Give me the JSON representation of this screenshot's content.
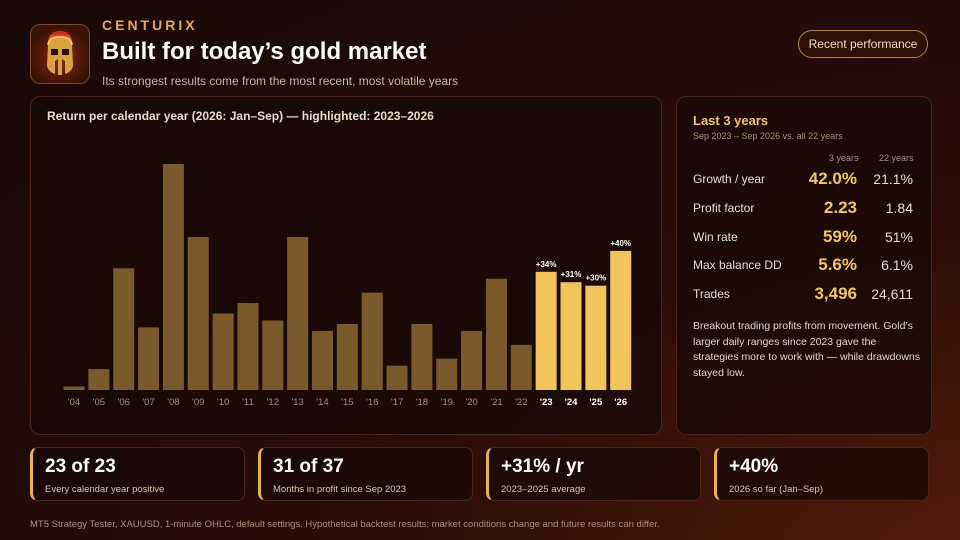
{
  "header": {
    "brand": "CENTURIX",
    "title": "Built for today’s gold market",
    "subtitle": "Its strongest results come from the most recent, most volatile years",
    "pill_label": "Recent performance"
  },
  "logo": {
    "icon": "spartan-helmet-icon"
  },
  "colors": {
    "bar_normal": "#7a5a2c",
    "bar_highlight": "#f2c55c",
    "accent": "#e8a85a"
  },
  "chart_data": {
    "type": "bar",
    "title": "Return per calendar year (2026: Jan–Sep) — highlighted: 2023–2026",
    "categories": [
      "'04",
      "'05",
      "'06",
      "'07",
      "'08",
      "'09",
      "'10",
      "'11",
      "'12",
      "'13",
      "'14",
      "'15",
      "'16",
      "'17",
      "'18",
      "'19",
      "'20",
      "'21",
      "'22",
      "'23",
      "'24",
      "'25",
      "'26"
    ],
    "values": [
      1,
      6,
      35,
      18,
      65,
      44,
      22,
      25,
      20,
      44,
      17,
      19,
      28,
      7,
      19,
      9,
      17,
      32,
      13,
      34,
      31,
      30,
      40
    ],
    "highlighted": [
      "'23",
      "'24",
      "'25",
      "'26"
    ],
    "data_labels": {
      "'23": "+34%",
      "'24": "+31%",
      "'25": "+30%",
      "'26": "+40%"
    },
    "ylim": [
      0,
      65
    ],
    "grid": false
  },
  "stats": {
    "title": "Last 3 years",
    "subtitle": "Sep 2023 – Sep 2026 vs. all 22 years",
    "col_3y": "3 years",
    "col_22y": "22 years",
    "rows": [
      {
        "label": "Growth / year",
        "v3": "42.0%",
        "v22": "21.1%"
      },
      {
        "label": "Profit factor",
        "v3": "2.23",
        "v22": "1.84"
      },
      {
        "label": "Win rate",
        "v3": "59%",
        "v22": "51%"
      },
      {
        "label": "Max balance DD",
        "v3": "5.6%",
        "v22": "6.1%"
      },
      {
        "label": "Trades",
        "v3": "3,496",
        "v22": "24,611"
      }
    ],
    "note": "Breakout trading profits from movement. Gold’s larger daily ranges since 2023 gave the strategies more to work with — while drawdowns stayed low."
  },
  "cards": [
    {
      "value": "23 of 23",
      "label": "Every calendar year positive"
    },
    {
      "value": "31 of 37",
      "label": "Months in profit since Sep 2023"
    },
    {
      "value": "+31% / yr",
      "label": "2023–2025 average"
    },
    {
      "value": "+40%",
      "label": "2026 so far (Jan–Sep)"
    }
  ],
  "footer": "MT5 Strategy Tester, XAUUSD, 1-minute OHLC, default settings. Hypothetical backtest results; market conditions change and future results can differ."
}
